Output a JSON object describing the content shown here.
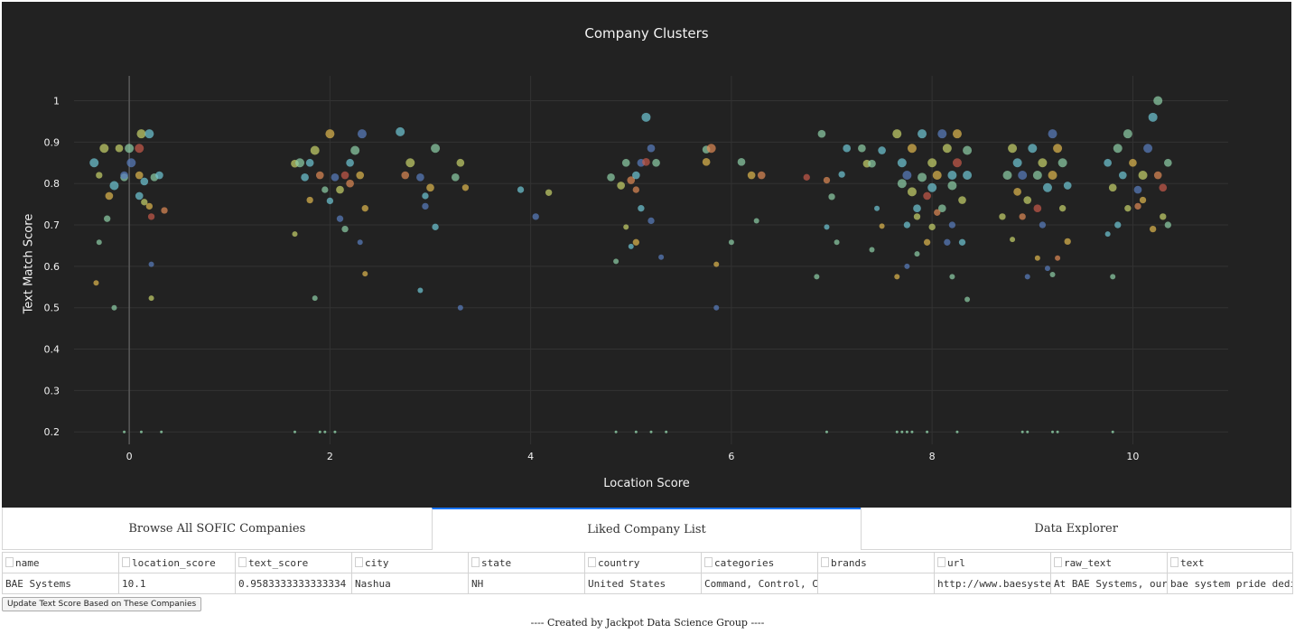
{
  "plot": {
    "title": "Company Clusters",
    "x_title": "Location Score",
    "y_title": "Text Match Score"
  },
  "chart_data": {
    "type": "scatter",
    "title": "Company Clusters",
    "xlabel": "Location Score",
    "ylabel": "Text Match Score",
    "xlim": [
      -0.55,
      10.95
    ],
    "ylim": [
      0.17,
      1.06
    ],
    "x_ticks": [
      0,
      2,
      4,
      6,
      8,
      10
    ],
    "y_ticks": [
      0.2,
      0.3,
      0.4,
      0.5,
      0.6,
      0.7,
      0.8,
      0.9,
      1
    ],
    "grid": true,
    "background": "#222222",
    "marker_colors": [
      "#6fc7d6",
      "#8fd0a8",
      "#c7d36b",
      "#e0b84f",
      "#e08a55",
      "#c85a4a",
      "#5a7fc0",
      "#a9d96f"
    ],
    "points": [
      {
        "x": -0.35,
        "y": 0.85,
        "s": 6,
        "c": 0
      },
      {
        "x": -0.3,
        "y": 0.82,
        "s": 4,
        "c": 2
      },
      {
        "x": -0.25,
        "y": 0.885,
        "s": 6,
        "c": 2
      },
      {
        "x": -0.2,
        "y": 0.77,
        "s": 5,
        "c": 3
      },
      {
        "x": -0.15,
        "y": 0.795,
        "s": 6,
        "c": 0
      },
      {
        "x": -0.1,
        "y": 0.885,
        "s": 5,
        "c": 2
      },
      {
        "x": -0.05,
        "y": 0.815,
        "s": 5,
        "c": 1
      },
      {
        "x": 0,
        "y": 0.885,
        "s": 6,
        "c": 1
      },
      {
        "x": 0.02,
        "y": 0.85,
        "s": 6,
        "c": 6
      },
      {
        "x": 0.1,
        "y": 0.885,
        "s": 6,
        "c": 5
      },
      {
        "x": 0.12,
        "y": 0.92,
        "s": 6,
        "c": 2
      },
      {
        "x": 0.2,
        "y": 0.92,
        "s": 6,
        "c": 0
      },
      {
        "x": 0.25,
        "y": 0.815,
        "s": 5,
        "c": 1
      },
      {
        "x": 0.3,
        "y": 0.82,
        "s": 5,
        "c": 0
      },
      {
        "x": 0.35,
        "y": 0.735,
        "s": 4,
        "c": 4
      },
      {
        "x": 0.22,
        "y": 0.72,
        "s": 4,
        "c": 5
      },
      {
        "x": 0.2,
        "y": 0.745,
        "s": 4,
        "c": 3
      },
      {
        "x": 0.15,
        "y": 0.755,
        "s": 4,
        "c": 2
      },
      {
        "x": 0.1,
        "y": 0.77,
        "s": 5,
        "c": 0
      },
      {
        "x": -0.22,
        "y": 0.715,
        "s": 4,
        "c": 1
      },
      {
        "x": -0.3,
        "y": 0.658,
        "s": 3,
        "c": 1
      },
      {
        "x": -0.33,
        "y": 0.56,
        "s": 3,
        "c": 3
      },
      {
        "x": -0.15,
        "y": 0.5,
        "s": 3,
        "c": 1
      },
      {
        "x": 0.22,
        "y": 0.605,
        "s": 3,
        "c": 6
      },
      {
        "x": 0.22,
        "y": 0.523,
        "s": 3,
        "c": 2
      },
      {
        "x": 0.1,
        "y": 0.82,
        "s": 5,
        "c": 3
      },
      {
        "x": 0.15,
        "y": 0.805,
        "s": 5,
        "c": 0
      },
      {
        "x": -0.05,
        "y": 0.82,
        "s": 5,
        "c": 6
      },
      {
        "x": 1.65,
        "y": 0.848,
        "s": 5,
        "c": 2
      },
      {
        "x": 1.7,
        "y": 0.85,
        "s": 6,
        "c": 1
      },
      {
        "x": 1.75,
        "y": 0.815,
        "s": 5,
        "c": 0
      },
      {
        "x": 1.8,
        "y": 0.76,
        "s": 4,
        "c": 3
      },
      {
        "x": 1.85,
        "y": 0.88,
        "s": 6,
        "c": 2
      },
      {
        "x": 1.9,
        "y": 0.82,
        "s": 5,
        "c": 4
      },
      {
        "x": 1.95,
        "y": 0.785,
        "s": 4,
        "c": 1
      },
      {
        "x": 2.0,
        "y": 0.92,
        "s": 6,
        "c": 3
      },
      {
        "x": 2.05,
        "y": 0.815,
        "s": 5,
        "c": 6
      },
      {
        "x": 2.1,
        "y": 0.785,
        "s": 5,
        "c": 2
      },
      {
        "x": 2.15,
        "y": 0.82,
        "s": 5,
        "c": 5
      },
      {
        "x": 2.2,
        "y": 0.85,
        "s": 5,
        "c": 0
      },
      {
        "x": 2.25,
        "y": 0.88,
        "s": 6,
        "c": 1
      },
      {
        "x": 2.3,
        "y": 0.82,
        "s": 5,
        "c": 3
      },
      {
        "x": 2.32,
        "y": 0.92,
        "s": 6,
        "c": 6
      },
      {
        "x": 2.35,
        "y": 0.74,
        "s": 4,
        "c": 3
      },
      {
        "x": 2.3,
        "y": 0.658,
        "s": 3,
        "c": 6
      },
      {
        "x": 2.35,
        "y": 0.582,
        "s": 3,
        "c": 3
      },
      {
        "x": 1.85,
        "y": 0.523,
        "s": 3,
        "c": 1
      },
      {
        "x": 1.65,
        "y": 0.678,
        "s": 3,
        "c": 2
      },
      {
        "x": 2.0,
        "y": 0.758,
        "s": 4,
        "c": 0
      },
      {
        "x": 2.1,
        "y": 0.715,
        "s": 4,
        "c": 6
      },
      {
        "x": 2.15,
        "y": 0.69,
        "s": 4,
        "c": 1
      },
      {
        "x": 1.8,
        "y": 0.85,
        "s": 5,
        "c": 0
      },
      {
        "x": 2.2,
        "y": 0.8,
        "s": 5,
        "c": 4
      },
      {
        "x": 2.7,
        "y": 0.925,
        "s": 6,
        "c": 0
      },
      {
        "x": 2.8,
        "y": 0.85,
        "s": 6,
        "c": 2
      },
      {
        "x": 2.9,
        "y": 0.815,
        "s": 5,
        "c": 6
      },
      {
        "x": 2.95,
        "y": 0.77,
        "s": 4,
        "c": 0
      },
      {
        "x": 3.0,
        "y": 0.79,
        "s": 5,
        "c": 3
      },
      {
        "x": 3.05,
        "y": 0.885,
        "s": 6,
        "c": 1
      },
      {
        "x": 3.05,
        "y": 0.695,
        "s": 4,
        "c": 0
      },
      {
        "x": 2.95,
        "y": 0.745,
        "s": 4,
        "c": 6
      },
      {
        "x": 2.9,
        "y": 0.542,
        "s": 3,
        "c": 0
      },
      {
        "x": 3.25,
        "y": 0.815,
        "s": 5,
        "c": 1
      },
      {
        "x": 3.3,
        "y": 0.85,
        "s": 5,
        "c": 2
      },
      {
        "x": 3.35,
        "y": 0.79,
        "s": 4,
        "c": 3
      },
      {
        "x": 3.3,
        "y": 0.5,
        "s": 3,
        "c": 6
      },
      {
        "x": 2.75,
        "y": 0.82,
        "s": 5,
        "c": 4
      },
      {
        "x": 3.9,
        "y": 0.785,
        "s": 4,
        "c": 0
      },
      {
        "x": 4.05,
        "y": 0.72,
        "s": 4,
        "c": 6
      },
      {
        "x": 4.18,
        "y": 0.778,
        "s": 4,
        "c": 2
      },
      {
        "x": 4.8,
        "y": 0.815,
        "s": 5,
        "c": 1
      },
      {
        "x": 4.9,
        "y": 0.795,
        "s": 5,
        "c": 2
      },
      {
        "x": 4.95,
        "y": 0.85,
        "s": 5,
        "c": 1
      },
      {
        "x": 5.0,
        "y": 0.808,
        "s": 5,
        "c": 4
      },
      {
        "x": 5.05,
        "y": 0.82,
        "s": 5,
        "c": 0
      },
      {
        "x": 5.1,
        "y": 0.85,
        "s": 5,
        "c": 6
      },
      {
        "x": 5.15,
        "y": 0.96,
        "s": 6,
        "c": 0
      },
      {
        "x": 5.2,
        "y": 0.885,
        "s": 5,
        "c": 6
      },
      {
        "x": 5.25,
        "y": 0.85,
        "s": 5,
        "c": 1
      },
      {
        "x": 5.2,
        "y": 0.71,
        "s": 4,
        "c": 6
      },
      {
        "x": 5.1,
        "y": 0.74,
        "s": 4,
        "c": 0
      },
      {
        "x": 5.05,
        "y": 0.658,
        "s": 4,
        "c": 3
      },
      {
        "x": 5.0,
        "y": 0.648,
        "s": 3,
        "c": 0
      },
      {
        "x": 4.95,
        "y": 0.695,
        "s": 3,
        "c": 2
      },
      {
        "x": 4.85,
        "y": 0.612,
        "s": 3,
        "c": 1
      },
      {
        "x": 5.3,
        "y": 0.622,
        "s": 3,
        "c": 6
      },
      {
        "x": 5.15,
        "y": 0.852,
        "s": 5,
        "c": 5
      },
      {
        "x": 5.05,
        "y": 0.785,
        "s": 4,
        "c": 4
      },
      {
        "x": 5.75,
        "y": 0.882,
        "s": 5,
        "c": 1
      },
      {
        "x": 5.8,
        "y": 0.885,
        "s": 6,
        "c": 4
      },
      {
        "x": 5.75,
        "y": 0.852,
        "s": 5,
        "c": 3
      },
      {
        "x": 5.85,
        "y": 0.605,
        "s": 3,
        "c": 3
      },
      {
        "x": 5.85,
        "y": 0.5,
        "s": 3,
        "c": 6
      },
      {
        "x": 6.0,
        "y": 0.658,
        "s": 3,
        "c": 1
      },
      {
        "x": 6.1,
        "y": 0.852,
        "s": 5,
        "c": 1
      },
      {
        "x": 6.2,
        "y": 0.82,
        "s": 5,
        "c": 3
      },
      {
        "x": 6.3,
        "y": 0.82,
        "s": 5,
        "c": 4
      },
      {
        "x": 6.25,
        "y": 0.71,
        "s": 3,
        "c": 1
      },
      {
        "x": 6.75,
        "y": 0.815,
        "s": 4,
        "c": 5
      },
      {
        "x": 6.85,
        "y": 0.575,
        "s": 3,
        "c": 1
      },
      {
        "x": 6.9,
        "y": 0.92,
        "s": 5,
        "c": 1
      },
      {
        "x": 6.95,
        "y": 0.808,
        "s": 4,
        "c": 4
      },
      {
        "x": 6.95,
        "y": 0.695,
        "s": 3,
        "c": 0
      },
      {
        "x": 7.0,
        "y": 0.768,
        "s": 4,
        "c": 1
      },
      {
        "x": 7.05,
        "y": 0.658,
        "s": 3,
        "c": 1
      },
      {
        "x": 7.1,
        "y": 0.822,
        "s": 4,
        "c": 0
      },
      {
        "x": 7.15,
        "y": 0.885,
        "s": 5,
        "c": 0
      },
      {
        "x": 7.3,
        "y": 0.885,
        "s": 5,
        "c": 1
      },
      {
        "x": 7.35,
        "y": 0.848,
        "s": 5,
        "c": 2
      },
      {
        "x": 7.4,
        "y": 0.848,
        "s": 5,
        "c": 1
      },
      {
        "x": 7.45,
        "y": 0.74,
        "s": 3,
        "c": 0
      },
      {
        "x": 7.4,
        "y": 0.64,
        "s": 3,
        "c": 1
      },
      {
        "x": 7.5,
        "y": 0.88,
        "s": 5,
        "c": 0
      },
      {
        "x": 7.5,
        "y": 0.697,
        "s": 3,
        "c": 3
      },
      {
        "x": 7.65,
        "y": 0.92,
        "s": 6,
        "c": 2
      },
      {
        "x": 7.7,
        "y": 0.85,
        "s": 6,
        "c": 0
      },
      {
        "x": 7.7,
        "y": 0.8,
        "s": 6,
        "c": 1
      },
      {
        "x": 7.75,
        "y": 0.82,
        "s": 6,
        "c": 6
      },
      {
        "x": 7.8,
        "y": 0.78,
        "s": 6,
        "c": 2
      },
      {
        "x": 7.8,
        "y": 0.885,
        "s": 6,
        "c": 3
      },
      {
        "x": 7.85,
        "y": 0.74,
        "s": 5,
        "c": 0
      },
      {
        "x": 7.9,
        "y": 0.815,
        "s": 6,
        "c": 1
      },
      {
        "x": 7.9,
        "y": 0.92,
        "s": 6,
        "c": 0
      },
      {
        "x": 7.95,
        "y": 0.77,
        "s": 5,
        "c": 5
      },
      {
        "x": 8.0,
        "y": 0.85,
        "s": 6,
        "c": 2
      },
      {
        "x": 8.0,
        "y": 0.79,
        "s": 6,
        "c": 0
      },
      {
        "x": 8.05,
        "y": 0.82,
        "s": 6,
        "c": 3
      },
      {
        "x": 8.1,
        "y": 0.92,
        "s": 6,
        "c": 6
      },
      {
        "x": 8.1,
        "y": 0.74,
        "s": 5,
        "c": 1
      },
      {
        "x": 8.15,
        "y": 0.885,
        "s": 6,
        "c": 2
      },
      {
        "x": 8.2,
        "y": 0.82,
        "s": 6,
        "c": 0
      },
      {
        "x": 8.2,
        "y": 0.795,
        "s": 6,
        "c": 1
      },
      {
        "x": 8.25,
        "y": 0.85,
        "s": 6,
        "c": 5
      },
      {
        "x": 8.25,
        "y": 0.92,
        "s": 6,
        "c": 3
      },
      {
        "x": 8.3,
        "y": 0.76,
        "s": 5,
        "c": 2
      },
      {
        "x": 8.35,
        "y": 0.82,
        "s": 6,
        "c": 0
      },
      {
        "x": 8.35,
        "y": 0.88,
        "s": 6,
        "c": 1
      },
      {
        "x": 8.2,
        "y": 0.7,
        "s": 4,
        "c": 6
      },
      {
        "x": 8.15,
        "y": 0.658,
        "s": 4,
        "c": 6
      },
      {
        "x": 8.3,
        "y": 0.658,
        "s": 4,
        "c": 0
      },
      {
        "x": 8.0,
        "y": 0.695,
        "s": 4,
        "c": 2
      },
      {
        "x": 7.95,
        "y": 0.658,
        "s": 4,
        "c": 3
      },
      {
        "x": 7.85,
        "y": 0.63,
        "s": 3,
        "c": 1
      },
      {
        "x": 7.75,
        "y": 0.6,
        "s": 3,
        "c": 6
      },
      {
        "x": 7.65,
        "y": 0.575,
        "s": 3,
        "c": 3
      },
      {
        "x": 8.2,
        "y": 0.575,
        "s": 3,
        "c": 1
      },
      {
        "x": 8.35,
        "y": 0.52,
        "s": 3,
        "c": 1
      },
      {
        "x": 7.75,
        "y": 0.7,
        "s": 4,
        "c": 0
      },
      {
        "x": 7.85,
        "y": 0.72,
        "s": 4,
        "c": 2
      },
      {
        "x": 8.05,
        "y": 0.73,
        "s": 4,
        "c": 4
      },
      {
        "x": 8.7,
        "y": 0.72,
        "s": 4,
        "c": 2
      },
      {
        "x": 8.75,
        "y": 0.82,
        "s": 6,
        "c": 1
      },
      {
        "x": 8.8,
        "y": 0.885,
        "s": 6,
        "c": 2
      },
      {
        "x": 8.85,
        "y": 0.85,
        "s": 6,
        "c": 0
      },
      {
        "x": 8.85,
        "y": 0.78,
        "s": 5,
        "c": 3
      },
      {
        "x": 8.9,
        "y": 0.82,
        "s": 6,
        "c": 6
      },
      {
        "x": 8.95,
        "y": 0.76,
        "s": 5,
        "c": 2
      },
      {
        "x": 9.0,
        "y": 0.885,
        "s": 6,
        "c": 0
      },
      {
        "x": 9.05,
        "y": 0.82,
        "s": 6,
        "c": 1
      },
      {
        "x": 9.05,
        "y": 0.74,
        "s": 5,
        "c": 5
      },
      {
        "x": 9.1,
        "y": 0.85,
        "s": 6,
        "c": 2
      },
      {
        "x": 9.15,
        "y": 0.79,
        "s": 6,
        "c": 0
      },
      {
        "x": 9.2,
        "y": 0.92,
        "s": 6,
        "c": 6
      },
      {
        "x": 9.2,
        "y": 0.82,
        "s": 6,
        "c": 3
      },
      {
        "x": 9.25,
        "y": 0.885,
        "s": 6,
        "c": 3
      },
      {
        "x": 9.3,
        "y": 0.85,
        "s": 6,
        "c": 1
      },
      {
        "x": 9.3,
        "y": 0.74,
        "s": 4,
        "c": 2
      },
      {
        "x": 9.35,
        "y": 0.795,
        "s": 5,
        "c": 0
      },
      {
        "x": 9.35,
        "y": 0.66,
        "s": 4,
        "c": 3
      },
      {
        "x": 9.1,
        "y": 0.7,
        "s": 4,
        "c": 6
      },
      {
        "x": 9.05,
        "y": 0.62,
        "s": 3,
        "c": 3
      },
      {
        "x": 8.95,
        "y": 0.575,
        "s": 3,
        "c": 6
      },
      {
        "x": 9.15,
        "y": 0.595,
        "s": 3,
        "c": 6
      },
      {
        "x": 9.2,
        "y": 0.58,
        "s": 3,
        "c": 1
      },
      {
        "x": 8.8,
        "y": 0.665,
        "s": 3,
        "c": 2
      },
      {
        "x": 8.9,
        "y": 0.72,
        "s": 4,
        "c": 4
      },
      {
        "x": 9.25,
        "y": 0.62,
        "s": 3,
        "c": 4
      },
      {
        "x": 9.75,
        "y": 0.85,
        "s": 5,
        "c": 0
      },
      {
        "x": 9.8,
        "y": 0.79,
        "s": 5,
        "c": 2
      },
      {
        "x": 9.85,
        "y": 0.885,
        "s": 6,
        "c": 1
      },
      {
        "x": 9.9,
        "y": 0.82,
        "s": 5,
        "c": 0
      },
      {
        "x": 9.95,
        "y": 0.92,
        "s": 6,
        "c": 1
      },
      {
        "x": 10.0,
        "y": 0.85,
        "s": 5,
        "c": 3
      },
      {
        "x": 10.05,
        "y": 0.785,
        "s": 5,
        "c": 6
      },
      {
        "x": 10.1,
        "y": 0.82,
        "s": 6,
        "c": 2
      },
      {
        "x": 10.15,
        "y": 0.885,
        "s": 6,
        "c": 6
      },
      {
        "x": 10.2,
        "y": 0.96,
        "s": 6,
        "c": 0
      },
      {
        "x": 10.25,
        "y": 1.0,
        "s": 6,
        "c": 1
      },
      {
        "x": 10.25,
        "y": 0.82,
        "s": 5,
        "c": 4
      },
      {
        "x": 10.3,
        "y": 0.79,
        "s": 5,
        "c": 5
      },
      {
        "x": 10.35,
        "y": 0.85,
        "s": 5,
        "c": 1
      },
      {
        "x": 10.3,
        "y": 0.72,
        "s": 4,
        "c": 2
      },
      {
        "x": 10.35,
        "y": 0.7,
        "s": 4,
        "c": 1
      },
      {
        "x": 10.2,
        "y": 0.69,
        "s": 4,
        "c": 3
      },
      {
        "x": 10.05,
        "y": 0.745,
        "s": 4,
        "c": 4
      },
      {
        "x": 9.95,
        "y": 0.74,
        "s": 4,
        "c": 2
      },
      {
        "x": 9.85,
        "y": 0.7,
        "s": 4,
        "c": 0
      },
      {
        "x": 9.75,
        "y": 0.678,
        "s": 3,
        "c": 0
      },
      {
        "x": 9.8,
        "y": 0.575,
        "s": 3,
        "c": 1
      },
      {
        "x": 10.1,
        "y": 0.76,
        "s": 4,
        "c": 3
      }
    ],
    "floor_points": [
      -0.05,
      0.12,
      0.32,
      1.65,
      1.9,
      1.95,
      2.05,
      4.85,
      5.05,
      5.2,
      5.35,
      6.95,
      7.65,
      7.7,
      7.75,
      7.8,
      7.95,
      8.25,
      8.9,
      8.95,
      9.2,
      9.25,
      9.8
    ]
  },
  "tabs": [
    {
      "label": "Browse All SOFIC Companies",
      "selected": false
    },
    {
      "label": "Liked Company List",
      "selected": true
    },
    {
      "label": "Data Explorer",
      "selected": false
    }
  ],
  "table": {
    "columns": [
      "name",
      "location_score",
      "text_score",
      "city",
      "state",
      "country",
      "categories",
      "brands",
      "url",
      "raw_text",
      "text"
    ],
    "rows": [
      [
        "BAE Systems",
        "10.1",
        "0.9583333333333334",
        "Nashua",
        "NH",
        "United States",
        "Command, Control, Com",
        "",
        "http://www.baesystems",
        "At BAE Systems, our pe",
        "bae system pride dedic"
      ]
    ]
  },
  "update_button_label": "Update Text Score Based on These Companies",
  "footer_text": "---- Created by Jackpot Data Science Group ----"
}
